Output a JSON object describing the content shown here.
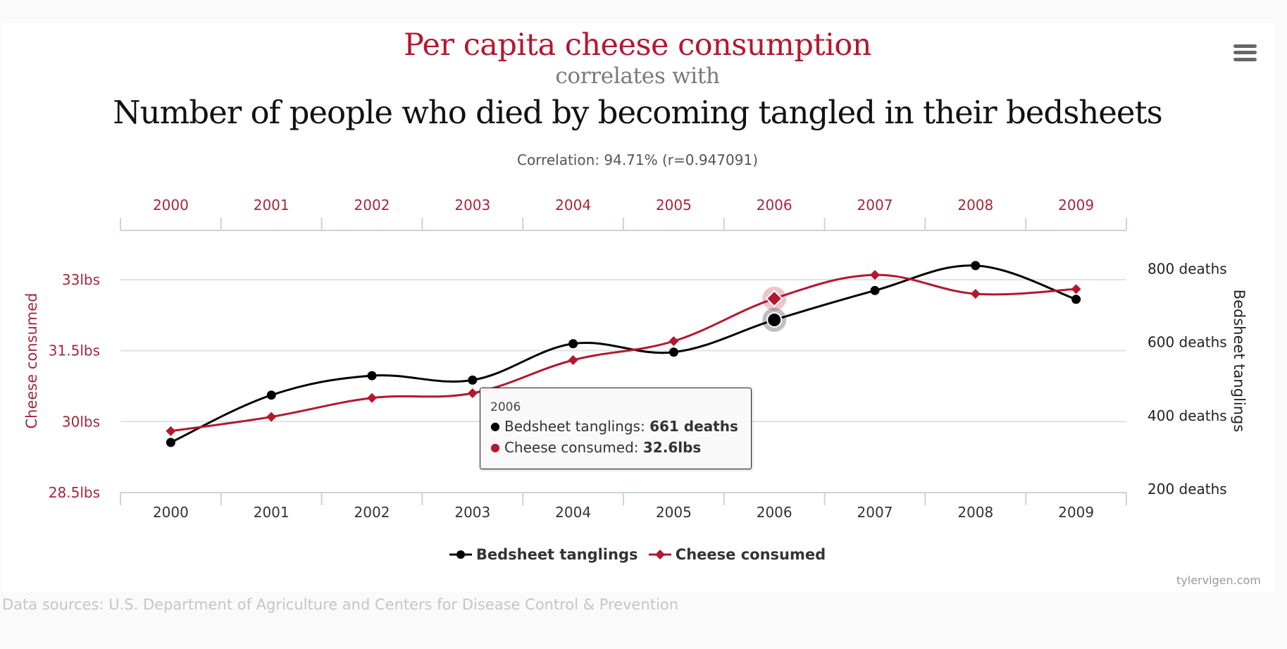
{
  "header": {
    "title_primary": "Per capita cheese consumption",
    "connector": "correlates with",
    "title_secondary": "Number of people who died by becoming tangled in their bedsheets",
    "correlation": "Correlation: 94.71% (r=0.947091)",
    "menu_icon": "hamburger-menu-icon"
  },
  "colors": {
    "cheese": "#b5172f",
    "bedsheet": "#000000",
    "axis_label_red": "#a3283c",
    "grid": "#dde3ea",
    "axis_line": "#c8d3df"
  },
  "tooltip": {
    "year": "2006",
    "rows": [
      {
        "label": "Bedsheet tanglings: ",
        "value": "661 deaths",
        "color": "#000000"
      },
      {
        "label": "Cheese consumed: ",
        "value": "32.6lbs",
        "color": "#b5172f"
      }
    ]
  },
  "legend": {
    "items": [
      {
        "label": "Bedsheet tanglings",
        "color": "#000000",
        "marker": "circle"
      },
      {
        "label": "Cheese consumed",
        "color": "#b5172f",
        "marker": "diamond"
      }
    ]
  },
  "footer": {
    "credit": "tylervigen.com",
    "sources": "Data sources: U.S. Department of Agriculture and Centers for Disease Control & Prevention"
  },
  "chart_data": {
    "type": "line",
    "title": "Per capita cheese consumption correlates with Number of people who died by becoming tangled in their bedsheets",
    "subtitle": "Correlation: 94.71% (r=0.947091)",
    "categories": [
      "2000",
      "2001",
      "2002",
      "2003",
      "2004",
      "2005",
      "2006",
      "2007",
      "2008",
      "2009"
    ],
    "series": [
      {
        "name": "Bedsheet tanglings",
        "axis": "right",
        "marker": "circle",
        "color": "#000000",
        "values": [
          327,
          456,
          509,
          497,
          596,
          573,
          661,
          741,
          809,
          717
        ]
      },
      {
        "name": "Cheese consumed",
        "axis": "left",
        "marker": "diamond",
        "color": "#b5172f",
        "values": [
          29.8,
          30.1,
          30.5,
          30.6,
          31.3,
          31.7,
          32.6,
          33.1,
          32.7,
          32.8
        ]
      }
    ],
    "y_left": {
      "label": "Cheese consumed",
      "ticks": [
        28.5,
        30,
        31.5,
        33
      ],
      "tick_labels": [
        "28.5lbs",
        "30lbs",
        "31.5lbs",
        "33lbs"
      ],
      "range": [
        28.5,
        34.04
      ]
    },
    "y_right": {
      "label": "Bedsheet tanglings",
      "ticks": [
        200,
        400,
        600,
        800
      ],
      "tick_labels": [
        "200 deaths",
        "400 deaths",
        "600 deaths",
        "800 deaths"
      ],
      "range": [
        190.4,
        904.8
      ]
    },
    "x_top_labels": [
      "2000",
      "2001",
      "2002",
      "2003",
      "2004",
      "2005",
      "2006",
      "2007",
      "2008",
      "2009"
    ],
    "x_bottom_labels": [
      "2000",
      "2001",
      "2002",
      "2003",
      "2004",
      "2005",
      "2006",
      "2007",
      "2008",
      "2009"
    ],
    "grid": true,
    "legend_position": "bottom-center",
    "highlighted_category": "2006"
  }
}
